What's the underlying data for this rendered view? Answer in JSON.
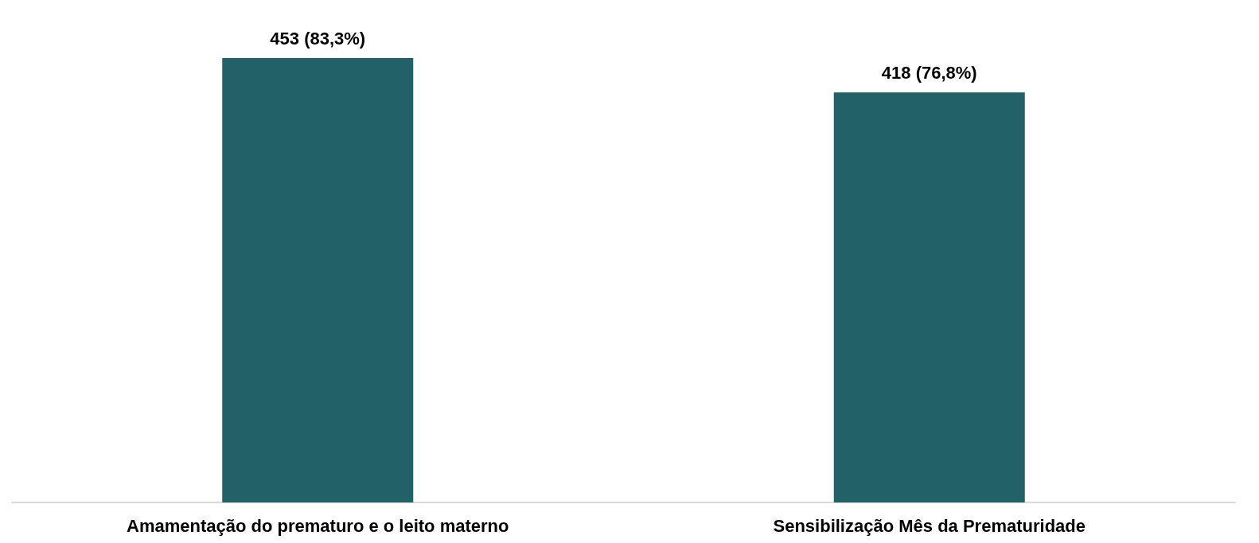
{
  "chart_data": {
    "type": "bar",
    "categories": [
      "Amamentação do prematuro e o leito materno",
      "Sensibilização Mês da Prematuridade"
    ],
    "values": [
      453,
      418
    ],
    "value_labels": [
      "453 (83,3%)",
      "418 (76,8%)"
    ],
    "color": "#216167",
    "grid": false
  }
}
